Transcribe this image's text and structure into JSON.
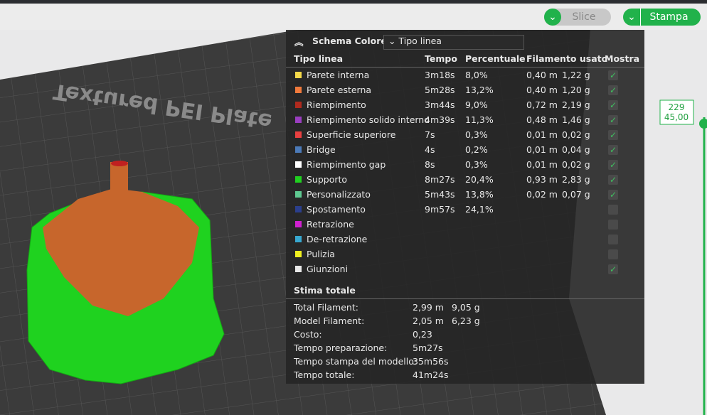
{
  "toolbar": {
    "slice": "Slice",
    "print": "Stampa"
  },
  "plate_label": "Textured PEI Plate",
  "layer_slider": {
    "layer": "229",
    "height": "45,00"
  },
  "panel": {
    "title": "Schema Colore",
    "view_mode": "Tipo linea",
    "columns": [
      "Tipo linea",
      "Tempo",
      "Percentuale",
      "Filamento usato",
      "Mostra"
    ],
    "rows": [
      {
        "name": "Parete interna",
        "color": "#f5d94a",
        "time": "3m18s",
        "percent": "8,0%",
        "filament_m": "0,40 m",
        "filament_g": "1,22 g",
        "shown": true
      },
      {
        "name": "Parete esterna",
        "color": "#f07a3c",
        "time": "5m28s",
        "percent": "13,2%",
        "filament_m": "0,40 m",
        "filament_g": "1,20 g",
        "shown": true
      },
      {
        "name": "Riempimento",
        "color": "#b02a1e",
        "time": "3m44s",
        "percent": "9,0%",
        "filament_m": "0,72 m",
        "filament_g": "2,19 g",
        "shown": true
      },
      {
        "name": "Riempimento solido interno",
        "color": "#9a3ec0",
        "time": "4m39s",
        "percent": "11,3%",
        "filament_m": "0,48 m",
        "filament_g": "1,46 g",
        "shown": true
      },
      {
        "name": "Superficie superiore",
        "color": "#e84040",
        "time": "7s",
        "percent": "0,3%",
        "filament_m": "0,01 m",
        "filament_g": "0,02 g",
        "shown": true
      },
      {
        "name": "Bridge",
        "color": "#4c7ab8",
        "time": "4s",
        "percent": "0,2%",
        "filament_m": "0,01 m",
        "filament_g": "0,04 g",
        "shown": true
      },
      {
        "name": "Riempimento gap",
        "color": "#ffffff",
        "time": "8s",
        "percent": "0,3%",
        "filament_m": "0,01 m",
        "filament_g": "0,02 g",
        "shown": true
      },
      {
        "name": "Supporto",
        "color": "#20d020",
        "time": "8m27s",
        "percent": "20,4%",
        "filament_m": "0,93 m",
        "filament_g": "2,83 g",
        "shown": true
      },
      {
        "name": "Personalizzato",
        "color": "#5ec890",
        "time": "5m43s",
        "percent": "13,8%",
        "filament_m": "0,02 m",
        "filament_g": "0,07 g",
        "shown": true
      },
      {
        "name": "Spostamento",
        "color": "#2b3f8c",
        "time": "9m57s",
        "percent": "24,1%",
        "shown": false
      },
      {
        "name": "Retrazione",
        "color": "#d020d0",
        "shown": false
      },
      {
        "name": "De-retrazione",
        "color": "#38a8d0",
        "shown": false
      },
      {
        "name": "Pulizia",
        "color": "#f0f020",
        "shown": false
      },
      {
        "name": "Giunzioni",
        "color": "#e8e8e8",
        "shown": true
      }
    ],
    "summary_title": "Stima totale",
    "summary": [
      {
        "label": "Total Filament:",
        "values": [
          "2,99 m",
          "9,05 g"
        ]
      },
      {
        "label": "Model Filament:",
        "values": [
          "2,05 m",
          "6,23 g"
        ]
      },
      {
        "label": "Costo:",
        "values": [
          "0,23"
        ]
      },
      {
        "label": "Tempo preparazione:",
        "values": [
          "5m27s"
        ]
      },
      {
        "label": "Tempo stampa del modello:",
        "values": [
          "35m56s"
        ]
      },
      {
        "label": "Tempo totale:",
        "values": [
          "41m24s"
        ]
      }
    ]
  }
}
